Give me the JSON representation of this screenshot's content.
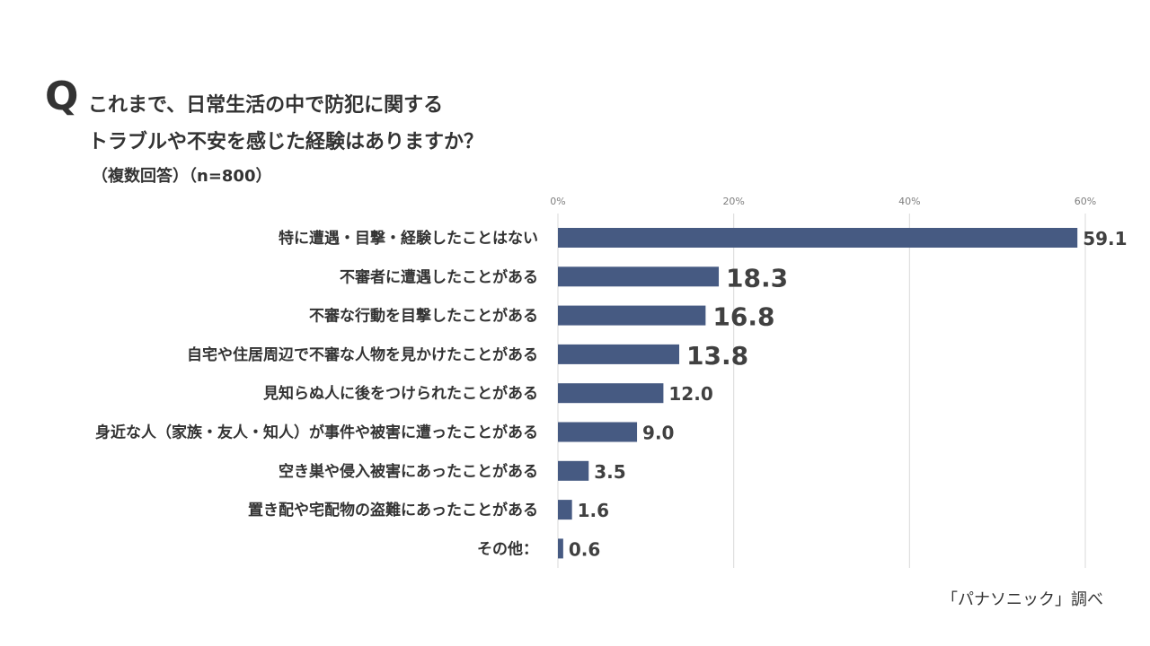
{
  "question": {
    "mark": "Q",
    "line1": "これまで、日常生活の中で防犯に関する",
    "line2": "トラブルや不安を感じた経験はありますか？",
    "note": "（複数回答）（n=800）"
  },
  "source": "「パナソニック」調べ",
  "colors": {
    "bar": "#465a82",
    "text": "#333333",
    "grid": "#d9d9d9",
    "tick": "#7f7f7f"
  },
  "chart_data": {
    "type": "bar",
    "orientation": "horizontal",
    "unit": "%",
    "xlim": [
      0,
      60
    ],
    "xticks": [
      0,
      20,
      40,
      60
    ],
    "xtick_labels": [
      "0%",
      "20%",
      "40%",
      "60%"
    ],
    "grid": true,
    "categories": [
      "特に遭遇・目撃・経験したことはない",
      "不審者に遭遇したことがある",
      "不審な行動を目撃したことがある",
      "自宅や住居周辺で不審な人物を見かけたことがある",
      "見知らぬ人に後をつけられたことがある",
      "身近な人（家族・友人・知人）が事件や被害に遭ったことがある",
      "空き巣や侵入被害にあったことがある",
      "置き配や宅配物の盗難にあったことがある",
      "その他："
    ],
    "values": [
      59.1,
      18.3,
      16.8,
      13.8,
      12.0,
      9.0,
      3.5,
      1.6,
      0.6
    ],
    "value_labels": [
      "59.1",
      "18.3",
      "16.8",
      "13.8",
      "12.0",
      "9.0",
      "3.5",
      "1.6",
      "0.6"
    ],
    "emphasized_labels": [
      false,
      true,
      true,
      true,
      false,
      false,
      false,
      false,
      false
    ]
  }
}
